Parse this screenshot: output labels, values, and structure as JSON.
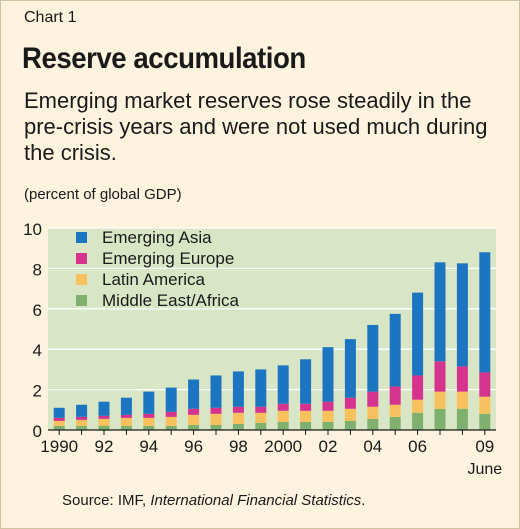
{
  "header": {
    "label": "Chart 1",
    "title": "Reserve accumulation",
    "subtitle": "Emerging market reserves rose steadily in the pre-crisis years and were not used much during the crisis.",
    "unit": "(percent of global GDP)"
  },
  "source": {
    "prefix": "Source: IMF, ",
    "publication": "International Financial Statistics",
    "suffix": "."
  },
  "colors": {
    "background": "#fdf3de",
    "plot_background": "#d8e6c5",
    "grid": "#ffffff",
    "emerging_asia": "#1b75c0",
    "emerging_europe": "#d6338f",
    "latin_america": "#f9c15e",
    "middle_east_africa": "#7fb06e"
  },
  "chart_data": {
    "type": "bar",
    "stacked": true,
    "categories": [
      "1990",
      "1991",
      "1992",
      "1993",
      "1994",
      "1995",
      "1996",
      "1997",
      "1998",
      "1999",
      "2000",
      "2001",
      "2002",
      "2003",
      "2004",
      "2005",
      "2006",
      "2007",
      "2008",
      "2009"
    ],
    "x_tick_labels": [
      "1990",
      "",
      "92",
      "",
      "94",
      "",
      "96",
      "",
      "98",
      "",
      "2000",
      "",
      "02",
      "",
      "04",
      "",
      "06",
      "",
      "",
      "09"
    ],
    "x_sub_label": "June",
    "ylim": [
      0,
      10
    ],
    "y_ticks": [
      0,
      2,
      4,
      6,
      8,
      10
    ],
    "grid": true,
    "legend_position": "top-left",
    "series": [
      {
        "name": "Middle East/Africa",
        "color_key": "middle_east_africa",
        "values": [
          0.2,
          0.2,
          0.2,
          0.2,
          0.2,
          0.2,
          0.25,
          0.25,
          0.3,
          0.35,
          0.4,
          0.4,
          0.4,
          0.45,
          0.55,
          0.65,
          0.85,
          1.05,
          1.05,
          0.8
        ]
      },
      {
        "name": "Latin America",
        "color_key": "latin_america",
        "values": [
          0.25,
          0.3,
          0.35,
          0.4,
          0.4,
          0.45,
          0.5,
          0.55,
          0.55,
          0.5,
          0.55,
          0.55,
          0.55,
          0.6,
          0.6,
          0.6,
          0.65,
          0.85,
          0.85,
          0.85
        ]
      },
      {
        "name": "Emerging Europe",
        "color_key": "emerging_europe",
        "values": [
          0.15,
          0.15,
          0.15,
          0.15,
          0.2,
          0.25,
          0.3,
          0.3,
          0.3,
          0.3,
          0.35,
          0.35,
          0.45,
          0.55,
          0.75,
          0.9,
          1.2,
          1.5,
          1.25,
          1.2
        ]
      },
      {
        "name": "Emerging Asia",
        "color_key": "emerging_asia",
        "values": [
          0.5,
          0.6,
          0.7,
          0.85,
          1.1,
          1.2,
          1.45,
          1.6,
          1.75,
          1.85,
          1.9,
          2.2,
          2.7,
          2.9,
          3.3,
          3.6,
          4.1,
          4.9,
          5.1,
          5.95
        ]
      }
    ],
    "legend_order": [
      "Emerging Asia",
      "Emerging Europe",
      "Latin America",
      "Middle East/Africa"
    ]
  }
}
